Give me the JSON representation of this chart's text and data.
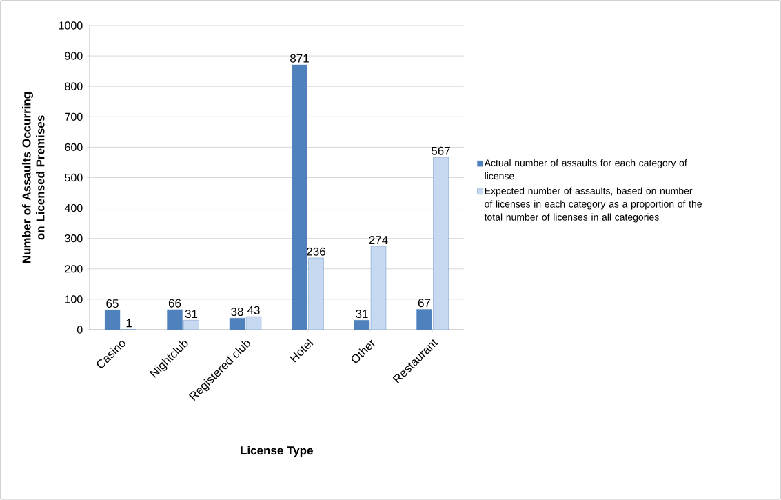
{
  "chart_data": {
    "type": "bar",
    "xlabel": "License Type",
    "ylabel": "Number of Assaults Occurring on Licensed Premises",
    "categories": [
      "Casino",
      "Nightclub",
      "Registered club",
      "Hotel",
      "Other",
      "Restaurant"
    ],
    "series": [
      {
        "name": "Actual number of assaults for each category of license",
        "color": "#4f81bd",
        "values": [
          65,
          66,
          38,
          871,
          31,
          67
        ]
      },
      {
        "name": "Expected number of assaults, based on number of licenses in each category as a proportion of the total number of licenses in all categories",
        "color": "#c6d9f1",
        "values": [
          1,
          31,
          43,
          236,
          274,
          567
        ]
      }
    ],
    "ylim": [
      0,
      1000
    ],
    "yticks": [
      0,
      100,
      200,
      300,
      400,
      500,
      600,
      700,
      800,
      900,
      1000
    ],
    "grid": "y",
    "legend": "right",
    "data_labels": true
  }
}
